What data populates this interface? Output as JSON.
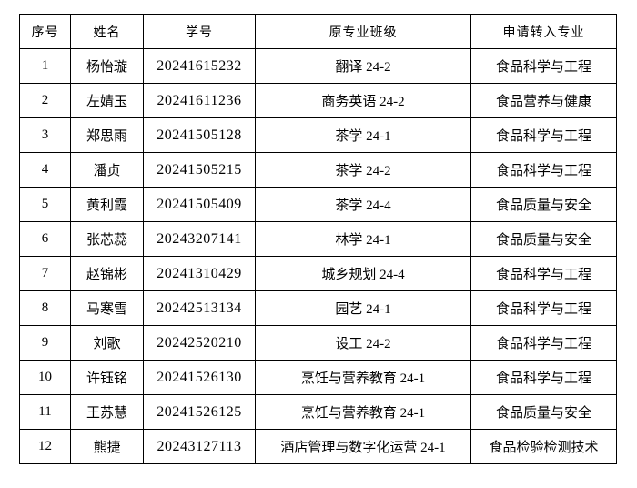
{
  "table": {
    "headers": [
      "序号",
      "姓名",
      "学号",
      "原专业班级",
      "申请转入专业"
    ],
    "column_keys": [
      "index",
      "name",
      "student-id",
      "original-major-class",
      "transfer-major"
    ],
    "rows": [
      [
        "1",
        "杨怡璇",
        "20241615232",
        "翻译 24-2",
        "食品科学与工程"
      ],
      [
        "2",
        "左婧玉",
        "20241611236",
        "商务英语 24-2",
        "食品营养与健康"
      ],
      [
        "3",
        "郑思雨",
        "20241505128",
        "茶学 24-1",
        "食品科学与工程"
      ],
      [
        "4",
        "潘贞",
        "20241505215",
        "茶学 24-2",
        "食品科学与工程"
      ],
      [
        "5",
        "黄利霞",
        "20241505409",
        "茶学 24-4",
        "食品质量与安全"
      ],
      [
        "6",
        "张芯蕊",
        "20243207141",
        "林学 24-1",
        "食品质量与安全"
      ],
      [
        "7",
        "赵锦彬",
        "20241310429",
        "城乡规划 24-4",
        "食品科学与工程"
      ],
      [
        "8",
        "马寒雪",
        "20242513134",
        "园艺 24-1",
        "食品科学与工程"
      ],
      [
        "9",
        "刘歌",
        "20242520210",
        "设工 24-2",
        "食品科学与工程"
      ],
      [
        "10",
        "许钰铭",
        "20241526130",
        "烹饪与营养教育 24-1",
        "食品科学与工程"
      ],
      [
        "11",
        "王苏慧",
        "20241526125",
        "烹饪与营养教育 24-1",
        "食品质量与安全"
      ],
      [
        "12",
        "熊捷",
        "20243127113",
        "酒店管理与数字化运营 24-1",
        "食品检验检测技术"
      ]
    ],
    "colors": {
      "border": "#000000",
      "background": "#ffffff",
      "text": "#000000"
    }
  }
}
